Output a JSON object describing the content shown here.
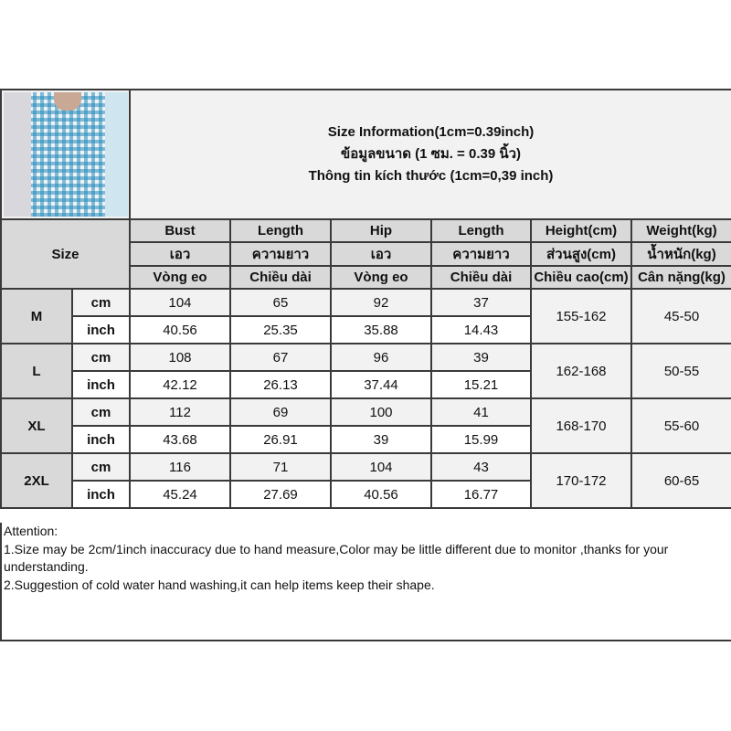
{
  "title_lines": [
    "Size Information(1cm=0.39inch)",
    "ข้อมูลขนาด (1 ซม. = 0.39 นิ้ว)",
    "Thông tin kích thước (1cm=0,39 inch)"
  ],
  "size_label": "Size",
  "headers": [
    [
      "Bust",
      "Length",
      "Hip",
      "Length",
      "Height(cm)",
      "Weight(kg)"
    ],
    [
      "เอว",
      "ความยาว",
      "เอว",
      "ความยาว",
      "ส่วนสูง(cm)",
      "น้ำหนัก(kg)"
    ],
    [
      "Vòng eo",
      "Chiều dài",
      "Vòng eo",
      "Chiều dài",
      "Chiều cao(cm)",
      "Cân nặng(kg)"
    ]
  ],
  "units": [
    "cm",
    "inch"
  ],
  "rows": [
    {
      "size": "M",
      "cm": [
        "104",
        "65",
        "92",
        "37"
      ],
      "inch": [
        "40.56",
        "25.35",
        "35.88",
        "14.43"
      ],
      "height": "155-162",
      "weight": "45-50"
    },
    {
      "size": "L",
      "cm": [
        "108",
        "67",
        "96",
        "39"
      ],
      "inch": [
        "42.12",
        "26.13",
        "37.44",
        "15.21"
      ],
      "height": "162-168",
      "weight": "50-55"
    },
    {
      "size": "XL",
      "cm": [
        "112",
        "69",
        "100",
        "41"
      ],
      "inch": [
        "43.68",
        "26.91",
        "39",
        "15.99"
      ],
      "height": "168-170",
      "weight": "55-60"
    },
    {
      "size": "2XL",
      "cm": [
        "116",
        "71",
        "104",
        "43"
      ],
      "inch": [
        "45.24",
        "27.69",
        "40.56",
        "16.77"
      ],
      "height": "170-172",
      "weight": "60-65"
    }
  ],
  "attention": [
    "Attention:",
    "1.Size may be 2cm/1inch inaccuracy due to hand measure,Color may be little different due to monitor ,thanks for your understanding.",
    "2.Suggestion of cold water hand washing,it can help items keep their shape."
  ],
  "colors": {
    "header_bg": "#d9d9d9",
    "cm_row_bg": "#f2f2f2",
    "border": "#3a3a3a"
  }
}
